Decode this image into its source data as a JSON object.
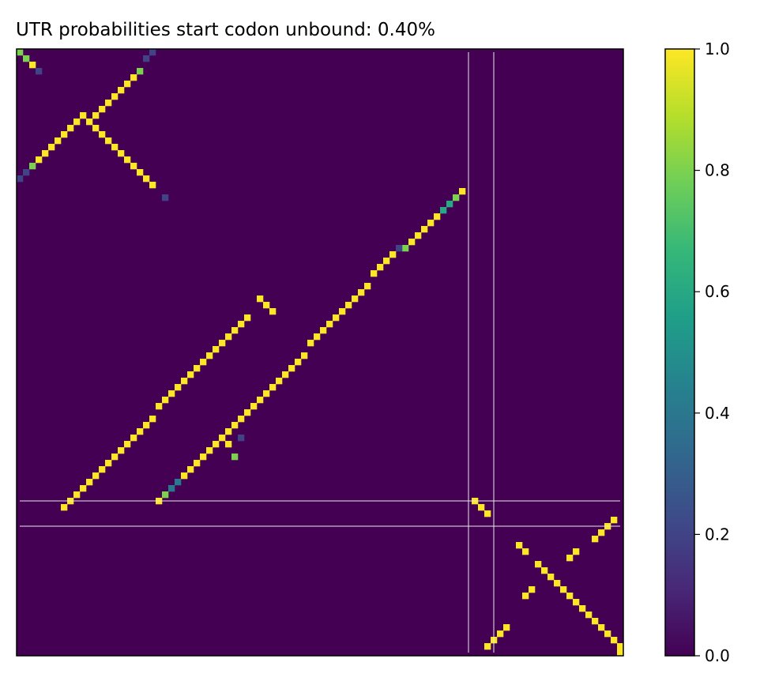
{
  "chart_data": {
    "type": "heatmap",
    "title": "UTR probabilities start codon unbound: 0.40%",
    "xlabel": "",
    "ylabel": "",
    "grid_size": 96,
    "colormap": "viridis",
    "background_value": 0.0,
    "colorbar": {
      "range": [
        0.0,
        1.0
      ],
      "ticks": [
        "0.0",
        "0.2",
        "0.4",
        "0.6",
        "0.8",
        "1.0"
      ],
      "position": "right"
    },
    "highlight_lines": {
      "color": "#e8e8e8",
      "rows": [
        71,
        75
      ],
      "cols": [
        71,
        75
      ]
    },
    "cells": [
      [
        0,
        0,
        0.8
      ],
      [
        1,
        1,
        0.8
      ],
      [
        2,
        2,
        1.0
      ],
      [
        3,
        3,
        0.2
      ],
      [
        0,
        21,
        0.2
      ],
      [
        1,
        20,
        0.2
      ],
      [
        3,
        19,
        0.8
      ],
      [
        4,
        18,
        1.0
      ],
      [
        5,
        17,
        1.0
      ],
      [
        6,
        16,
        1.0
      ],
      [
        7,
        15,
        1.0
      ],
      [
        8,
        14,
        1.0
      ],
      [
        9,
        13,
        1.0
      ],
      [
        10,
        12,
        1.0
      ],
      [
        10,
        10,
        1.0
      ],
      [
        11,
        11,
        1.0
      ],
      [
        12,
        12,
        1.0
      ],
      [
        13,
        13,
        1.0
      ],
      [
        14,
        14,
        1.0
      ],
      [
        15,
        15,
        1.0
      ],
      [
        16,
        16,
        1.0
      ],
      [
        17,
        17,
        1.0
      ],
      [
        18,
        18,
        1.0
      ],
      [
        19,
        19,
        1.0
      ],
      [
        20,
        20,
        1.0
      ],
      [
        21,
        21,
        1.0
      ],
      [
        23,
        23,
        0.2
      ],
      [
        11,
        9,
        1.0
      ],
      [
        12,
        8,
        1.0
      ],
      [
        13,
        7,
        1.0
      ],
      [
        14,
        6,
        1.0
      ],
      [
        15,
        5,
        1.0
      ],
      [
        16,
        4,
        1.0
      ],
      [
        17,
        3,
        1.0
      ],
      [
        18,
        2,
        0.8
      ],
      [
        19,
        1,
        0.2
      ],
      [
        20,
        0,
        0.2
      ],
      [
        22,
        70,
        1.0
      ],
      [
        23,
        69,
        0.8
      ],
      [
        24,
        68,
        0.6
      ],
      [
        25,
        67,
        0.6
      ],
      [
        26,
        66,
        1.0
      ],
      [
        27,
        65,
        1.0
      ],
      [
        28,
        64,
        1.0
      ],
      [
        29,
        63,
        1.0
      ],
      [
        30,
        62,
        1.0
      ],
      [
        31,
        61,
        0.8
      ],
      [
        31,
        60,
        0.2
      ],
      [
        32,
        59,
        1.0
      ],
      [
        33,
        58,
        1.0
      ],
      [
        34,
        57,
        1.0
      ],
      [
        35,
        56,
        1.0
      ],
      [
        37,
        55,
        1.0
      ],
      [
        38,
        54,
        1.0
      ],
      [
        39,
        53,
        1.0
      ],
      [
        40,
        52,
        1.0
      ],
      [
        41,
        51,
        1.0
      ],
      [
        42,
        50,
        1.0
      ],
      [
        43,
        49,
        1.0
      ],
      [
        44,
        48,
        1.0
      ],
      [
        45,
        47,
        1.0
      ],
      [
        46,
        46,
        1.0
      ],
      [
        39,
        38,
        1.0
      ],
      [
        40,
        39,
        1.0
      ],
      [
        41,
        40,
        1.0
      ],
      [
        42,
        36,
        1.0
      ],
      [
        43,
        35,
        1.0
      ],
      [
        44,
        34,
        1.0
      ],
      [
        45,
        33,
        1.0
      ],
      [
        46,
        32,
        1.0
      ],
      [
        47,
        31,
        1.0
      ],
      [
        48,
        30,
        1.0
      ],
      [
        49,
        29,
        1.0
      ],
      [
        50,
        28,
        1.0
      ],
      [
        51,
        27,
        1.0
      ],
      [
        52,
        26,
        1.0
      ],
      [
        53,
        25,
        1.0
      ],
      [
        54,
        24,
        1.0
      ],
      [
        55,
        23,
        1.0
      ],
      [
        56,
        22,
        1.0
      ],
      [
        58,
        21,
        1.0
      ],
      [
        59,
        20,
        1.0
      ],
      [
        60,
        19,
        1.0
      ],
      [
        61,
        18,
        1.0
      ],
      [
        62,
        17,
        1.0
      ],
      [
        63,
        16,
        1.0
      ],
      [
        64,
        15,
        1.0
      ],
      [
        65,
        14,
        1.0
      ],
      [
        66,
        13,
        1.0
      ],
      [
        67,
        12,
        1.0
      ],
      [
        68,
        11,
        1.0
      ],
      [
        69,
        10,
        1.0
      ],
      [
        70,
        9,
        1.0
      ],
      [
        71,
        8,
        1.0
      ],
      [
        72,
        7,
        1.0
      ],
      [
        48,
        45,
        1.0
      ],
      [
        49,
        44,
        1.0
      ],
      [
        50,
        43,
        1.0
      ],
      [
        51,
        42,
        1.0
      ],
      [
        52,
        41,
        1.0
      ],
      [
        53,
        40,
        1.0
      ],
      [
        54,
        39,
        1.0
      ],
      [
        55,
        38,
        1.0
      ],
      [
        56,
        37,
        1.0
      ],
      [
        57,
        36,
        1.0
      ],
      [
        58,
        35,
        1.0
      ],
      [
        59,
        34,
        1.0
      ],
      [
        60,
        33,
        1.0
      ],
      [
        61,
        32,
        1.0
      ],
      [
        62,
        31,
        1.0
      ],
      [
        63,
        30,
        1.0
      ],
      [
        64,
        29,
        1.0
      ],
      [
        65,
        28,
        1.0
      ],
      [
        66,
        27,
        1.0
      ],
      [
        67,
        26,
        1.0
      ],
      [
        68,
        25,
        0.4
      ],
      [
        69,
        24,
        0.4
      ],
      [
        70,
        23,
        0.8
      ],
      [
        71,
        22,
        1.0
      ],
      [
        61,
        35,
        0.2
      ],
      [
        64,
        34,
        0.8
      ],
      [
        62,
        33,
        1.0
      ],
      [
        71,
        72,
        1.0
      ],
      [
        72,
        73,
        1.0
      ],
      [
        73,
        74,
        1.0
      ],
      [
        78,
        79,
        1.0
      ],
      [
        79,
        80,
        1.0
      ],
      [
        81,
        82,
        1.0
      ],
      [
        82,
        83,
        1.0
      ],
      [
        83,
        84,
        1.0
      ],
      [
        84,
        85,
        1.0
      ],
      [
        85,
        86,
        1.0
      ],
      [
        86,
        87,
        1.0
      ],
      [
        87,
        88,
        1.0
      ],
      [
        88,
        89,
        1.0
      ],
      [
        89,
        90,
        1.0
      ],
      [
        90,
        91,
        1.0
      ],
      [
        91,
        92,
        1.0
      ],
      [
        92,
        93,
        1.0
      ],
      [
        93,
        94,
        1.0
      ],
      [
        94,
        95,
        1.0
      ],
      [
        95,
        95,
        1.0
      ],
      [
        74,
        94,
        1.0
      ],
      [
        75,
        93,
        1.0
      ],
      [
        76,
        92,
        1.0
      ],
      [
        77,
        91,
        1.0
      ],
      [
        79,
        88,
        1.0
      ],
      [
        80,
        87,
        1.0
      ],
      [
        85,
        81,
        1.0
      ],
      [
        86,
        80,
        1.0
      ],
      [
        91,
        77,
        1.0
      ],
      [
        92,
        76,
        1.0
      ],
      [
        93,
        75,
        1.0
      ],
      [
        94,
        74,
        1.0
      ]
    ]
  }
}
